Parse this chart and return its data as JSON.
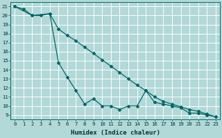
{
  "xlabel": "Humidex (Indice chaleur)",
  "bg_color": "#b2d8d8",
  "grid_color": "#ffffff",
  "line_color": "#006666",
  "xlim": [
    -0.5,
    23.5
  ],
  "ylim": [
    8.5,
    21.5
  ],
  "xtick_labels": [
    "0",
    "1",
    "2",
    "3",
    "4",
    "5",
    "6",
    "7",
    "8",
    "9",
    "10",
    "11",
    "12",
    "13",
    "14",
    "15",
    "16",
    "17",
    "18",
    "19",
    "20",
    "21",
    "22",
    "23"
  ],
  "xtick_vals": [
    0,
    1,
    2,
    3,
    4,
    5,
    6,
    7,
    8,
    9,
    10,
    11,
    12,
    13,
    14,
    15,
    16,
    17,
    18,
    19,
    20,
    21,
    22,
    23
  ],
  "ytick_vals": [
    9,
    10,
    11,
    12,
    13,
    14,
    15,
    16,
    17,
    18,
    19,
    20,
    21
  ],
  "line1_x": [
    0,
    1,
    2,
    3,
    4,
    5,
    6,
    7,
    8,
    9,
    10,
    11,
    12,
    13,
    14,
    15,
    16,
    17,
    18,
    19,
    20,
    21,
    22,
    23
  ],
  "line1_y": [
    21.0,
    20.7,
    20.0,
    20.0,
    20.2,
    14.8,
    13.2,
    11.7,
    10.2,
    10.8,
    10.0,
    10.0,
    9.6,
    10.0,
    10.0,
    11.7,
    10.4,
    10.2,
    10.0,
    9.8,
    9.2,
    9.2,
    9.0,
    8.8
  ],
  "line2_x": [
    0,
    2,
    4,
    5,
    6,
    7,
    8,
    9,
    10,
    11,
    12,
    13,
    14,
    15,
    16,
    17,
    18,
    19,
    20,
    21,
    22,
    23
  ],
  "line2_y": [
    21.0,
    20.0,
    20.2,
    18.5,
    17.8,
    17.2,
    16.5,
    15.8,
    15.1,
    14.4,
    13.7,
    13.0,
    12.3,
    11.7,
    11.0,
    10.5,
    10.2,
    9.9,
    9.6,
    9.4,
    9.1,
    8.8
  ],
  "xlabel_fontsize": 6.5,
  "tick_fontsize": 5.2
}
